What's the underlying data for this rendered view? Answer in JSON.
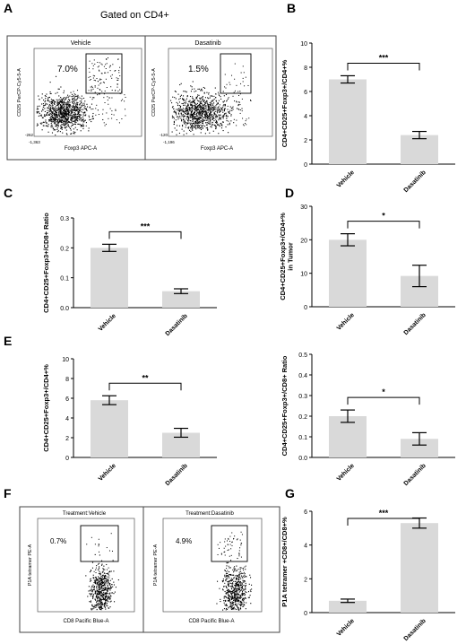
{
  "panel_letters": {
    "A": "A",
    "B": "B",
    "C": "C",
    "D": "D",
    "E": "E",
    "F": "F",
    "G": "G"
  },
  "panelA": {
    "title": "Gated on CD4+",
    "plots": [
      {
        "name": "Vehicle",
        "percent": "7.0%",
        "ylabel": "CD25 PerCP-Cy5-5-A",
        "xlabel": "Foxp3 APC-A",
        "ymin_label": "-262",
        "xmin_label": "-1,363"
      },
      {
        "name": "Dasatinib",
        "percent": "1.5%",
        "ylabel": "CD25 PerCP-Cy5-5-A",
        "xlabel": "Foxp3 APC-A",
        "ymin_label": "-120",
        "xmin_label": "-1,196"
      }
    ]
  },
  "panelF": {
    "plots": [
      {
        "name": "Treatment:Vehicle",
        "percent": "0.7%",
        "ylabel": "P1A tetramer PE-A",
        "xlabel": "CD8 Pacific Blue-A"
      },
      {
        "name": "Treatment:Dasatinib",
        "percent": "4.9%",
        "ylabel": "P1A tetramer PE-A",
        "xlabel": "CD8 Pacific Blue-A"
      }
    ]
  },
  "chart_data": [
    {
      "id": "B",
      "type": "bar",
      "categories": [
        "Vehicle",
        "Dasatinib"
      ],
      "values": [
        7.0,
        2.4
      ],
      "errors": [
        0.3,
        0.3
      ],
      "ylabel": "CD4+CD25+Foxp3+/CD4+%",
      "ylim": [
        0,
        10
      ],
      "yticks": [
        0,
        2,
        4,
        6,
        8,
        10
      ],
      "significance": "***"
    },
    {
      "id": "C",
      "type": "bar",
      "categories": [
        "Vehicle",
        "Dasatinib"
      ],
      "values": [
        0.2,
        0.055
      ],
      "errors": [
        0.012,
        0.008
      ],
      "ylabel": "CD4+CD25+Foxp3+/CD8+ Ratio",
      "ylim": [
        0,
        0.3
      ],
      "yticks": [
        0.0,
        0.1,
        0.2,
        0.3
      ],
      "significance": "***"
    },
    {
      "id": "D",
      "type": "bar",
      "categories": [
        "Vehicle",
        "Dasatinib"
      ],
      "values": [
        20,
        9.2
      ],
      "errors": [
        1.8,
        3.2
      ],
      "ylabel": "CD4+CD25+Foxp3+/CD4+% in Tumor",
      "ylim": [
        0,
        30
      ],
      "yticks": [
        0,
        10,
        20,
        30
      ],
      "significance": "*"
    },
    {
      "id": "E1",
      "type": "bar",
      "categories": [
        "Vehicle",
        "Dasatinib"
      ],
      "values": [
        5.8,
        2.5
      ],
      "errors": [
        0.45,
        0.45
      ],
      "ylabel": "CD4+CD25+Foxp3+/CD4+%",
      "ylim": [
        0,
        10
      ],
      "yticks": [
        0,
        2,
        4,
        6,
        8,
        10
      ],
      "significance": "**"
    },
    {
      "id": "E2",
      "type": "bar",
      "categories": [
        "Vehicle",
        "Dasatinib"
      ],
      "values": [
        0.2,
        0.09
      ],
      "errors": [
        0.03,
        0.03
      ],
      "ylabel": "CD4+CD25+Foxp3+/CD8+ Ratio",
      "ylim": [
        0,
        0.5
      ],
      "yticks": [
        0.0,
        0.1,
        0.2,
        0.3,
        0.4,
        0.5
      ],
      "significance": "*"
    },
    {
      "id": "G",
      "type": "bar",
      "categories": [
        "Vehicle",
        "Dasatinib"
      ],
      "values": [
        0.7,
        5.3
      ],
      "errors": [
        0.1,
        0.3
      ],
      "ylabel": "P1A tetramer +CD8+/CD8+%",
      "ylim": [
        0,
        6
      ],
      "yticks": [
        0,
        2,
        4,
        6
      ],
      "significance": "***"
    }
  ]
}
